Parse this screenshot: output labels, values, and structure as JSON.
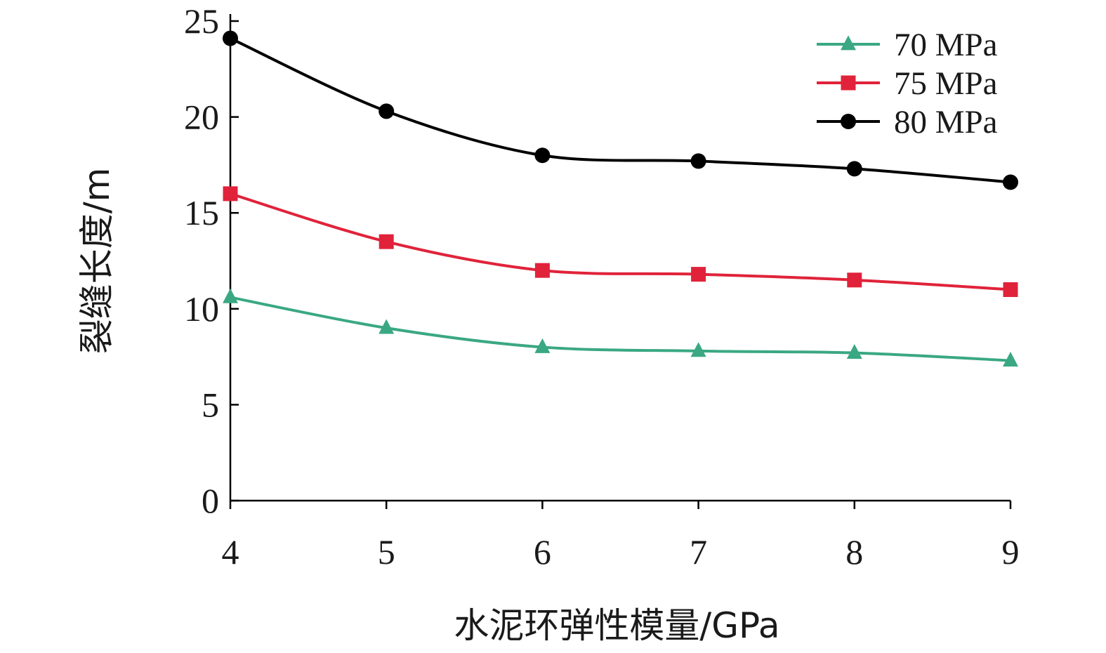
{
  "chart_data": {
    "type": "line",
    "xlabel": "水泥环弹性模量/GPa",
    "ylabel": "裂缝长度/m",
    "xlim": [
      4,
      9
    ],
    "ylim": [
      0,
      25
    ],
    "x_ticks": [
      4,
      5,
      6,
      7,
      8,
      9
    ],
    "y_ticks": [
      0,
      5,
      10,
      15,
      20,
      25
    ],
    "x_tick_labels": [
      "4",
      "5",
      "6",
      "7",
      "8",
      "9"
    ],
    "y_tick_labels": [
      "0",
      "5",
      "10",
      "15",
      "20",
      "25"
    ],
    "grid": false,
    "legend_position": "top-right",
    "x": [
      4,
      5,
      6,
      7,
      8,
      9
    ],
    "series": [
      {
        "name": "70 MPa",
        "values": [
          10.6,
          9.0,
          8.0,
          7.8,
          7.7,
          7.3
        ],
        "color": "#3aa882",
        "marker": "triangle"
      },
      {
        "name": "75 MPa",
        "values": [
          16.0,
          13.5,
          12.0,
          11.8,
          11.5,
          11.0
        ],
        "color": "#e0233a",
        "marker": "square"
      },
      {
        "name": "80 MPa",
        "values": [
          24.1,
          20.3,
          18.0,
          17.7,
          17.3,
          16.6
        ],
        "color": "#000000",
        "marker": "circle"
      }
    ]
  }
}
